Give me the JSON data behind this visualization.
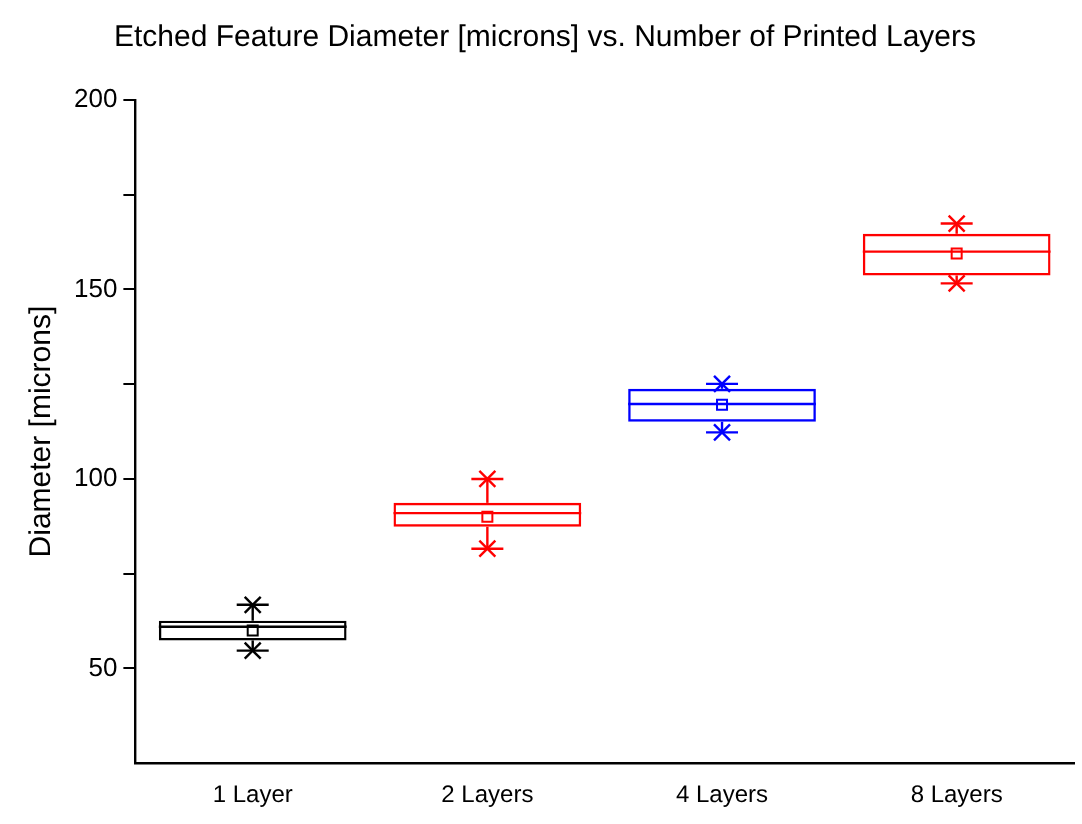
{
  "chart_data": {
    "type": "box",
    "title": "Etched Feature Diameter [microns] vs. Number of Printed Layers",
    "ylabel": "Diameter [microns]",
    "categories": [
      "1 Layer",
      "2 Layers",
      "4 Layers",
      "8 Layers"
    ],
    "colors": [
      "#000000",
      "#ff0000",
      "#0000ff",
      "#ff0000"
    ],
    "boxes": [
      {
        "low": 54.7,
        "q1": 57.4,
        "median": 61,
        "q3": 62.6,
        "high": 66.8,
        "mean": 60,
        "outliers": [
          54.7,
          66.8
        ]
      },
      {
        "low": 81.6,
        "q1": 87.4,
        "median": 91,
        "q3": 93.7,
        "high": 100,
        "mean": 90,
        "outliers": [
          81.6,
          100
        ]
      },
      {
        "low": 112.3,
        "q1": 115.1,
        "median": 119.8,
        "q3": 123.8,
        "high": 125.1,
        "mean": 119.6,
        "outliers": [
          112.3,
          125.1
        ]
      },
      {
        "low": 151.6,
        "q1": 153.7,
        "median": 160,
        "q3": 164.7,
        "high": 167.4,
        "mean": 159.5,
        "outliers": [
          151.6,
          167.4
        ]
      }
    ],
    "ylim": [
      25,
      200
    ],
    "yticks": [
      50,
      {
        "value": 75,
        "label": null
      },
      100,
      {
        "value": 125,
        "label": null
      },
      150,
      {
        "value": 175,
        "label": null
      },
      200
    ],
    "grid": false,
    "legend": false
  }
}
